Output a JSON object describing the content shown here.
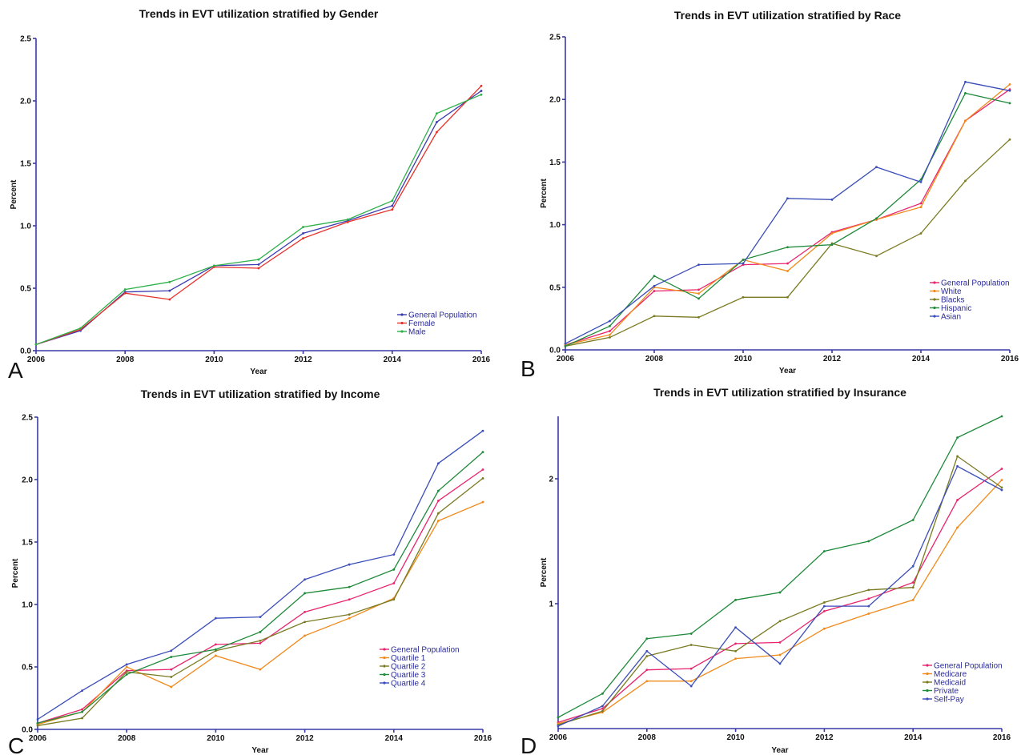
{
  "chart_data": [
    {
      "type": "line",
      "letter": "A",
      "title": "Trends in EVT utilization stratified by Gender",
      "xlabel": "Year",
      "ylabel": "Percent",
      "xlim": [
        2006,
        2016
      ],
      "ylim": [
        0,
        2.5
      ],
      "yticks": [
        "0.0",
        "0.5",
        "1.0",
        "1.5",
        "2.0",
        "2.5"
      ],
      "ytick_values": [
        0,
        0.5,
        1,
        1.5,
        2,
        2.5
      ],
      "xticks": [
        2006,
        2008,
        2010,
        2012,
        2014,
        2016
      ],
      "legend_position": "bottom-right",
      "x": [
        2006,
        2007,
        2008,
        2009,
        2010,
        2011,
        2012,
        2013,
        2014,
        2015,
        2016
      ],
      "series": [
        {
          "name": "General Population",
          "color": "#3b3bb0",
          "values": [
            0.05,
            0.16,
            0.47,
            0.48,
            0.68,
            0.69,
            0.94,
            1.04,
            1.16,
            1.83,
            2.08
          ]
        },
        {
          "name": "Female",
          "color": "#e8302a",
          "values": [
            0.05,
            0.17,
            0.46,
            0.41,
            0.67,
            0.66,
            0.9,
            1.03,
            1.13,
            1.75,
            2.12
          ]
        },
        {
          "name": "Male",
          "color": "#2eb04a",
          "values": [
            0.05,
            0.18,
            0.49,
            0.55,
            0.68,
            0.73,
            0.99,
            1.05,
            1.2,
            1.9,
            2.05
          ]
        }
      ]
    },
    {
      "type": "line",
      "letter": "B",
      "title": "Trends in EVT utilization stratified by Race",
      "xlabel": "Year",
      "ylabel": "Percent",
      "xlim": [
        2006,
        2016
      ],
      "ylim": [
        0,
        2.5
      ],
      "yticks": [
        "0.0",
        "0.5",
        "1.0",
        "1.5",
        "2.0",
        "2.5"
      ],
      "ytick_values": [
        0,
        0.5,
        1,
        1.5,
        2,
        2.5
      ],
      "xticks": [
        2006,
        2008,
        2010,
        2012,
        2014,
        2016
      ],
      "legend_position": "bottom-right",
      "x": [
        2006,
        2007,
        2008,
        2009,
        2010,
        2011,
        2012,
        2013,
        2014,
        2015,
        2016
      ],
      "series": [
        {
          "name": "General Population",
          "color": "#e8246e",
          "values": [
            0.04,
            0.15,
            0.47,
            0.48,
            0.68,
            0.69,
            0.94,
            1.04,
            1.17,
            1.83,
            2.08
          ]
        },
        {
          "name": "White",
          "color": "#f08a1c",
          "values": [
            0.04,
            0.12,
            0.5,
            0.45,
            0.72,
            0.63,
            0.93,
            1.04,
            1.14,
            1.83,
            2.12
          ]
        },
        {
          "name": "Blacks",
          "color": "#7a7a22",
          "values": [
            0.03,
            0.1,
            0.27,
            0.26,
            0.42,
            0.42,
            0.85,
            0.75,
            0.93,
            1.35,
            1.68
          ]
        },
        {
          "name": "Hispanic",
          "color": "#1e8a3a",
          "values": [
            0.03,
            0.19,
            0.59,
            0.41,
            0.72,
            0.82,
            0.84,
            1.05,
            1.36,
            2.05,
            1.97
          ]
        },
        {
          "name": "Asian",
          "color": "#3b4db8",
          "values": [
            0.05,
            0.23,
            0.51,
            0.68,
            0.69,
            1.21,
            1.2,
            1.46,
            1.34,
            2.14,
            2.07
          ]
        }
      ]
    },
    {
      "type": "line",
      "letter": "C",
      "title": "Trends in EVT utilization stratified by Income",
      "xlabel": "Year",
      "ylabel": "Percent",
      "xlim": [
        2006,
        2016
      ],
      "ylim": [
        0,
        2.5
      ],
      "yticks": [
        "0.0",
        "0.5",
        "1.0",
        "1.5",
        "2.0",
        "2.5"
      ],
      "ytick_values": [
        0,
        0.5,
        1,
        1.5,
        2,
        2.5
      ],
      "xticks": [
        2006,
        2008,
        2010,
        2012,
        2014,
        2016
      ],
      "legend_position": "bottom-right",
      "x": [
        2006,
        2007,
        2008,
        2009,
        2010,
        2011,
        2012,
        2013,
        2014,
        2015,
        2016
      ],
      "series": [
        {
          "name": "General Population",
          "color": "#e8246e",
          "values": [
            0.05,
            0.16,
            0.47,
            0.48,
            0.68,
            0.69,
            0.94,
            1.04,
            1.17,
            1.83,
            2.08
          ]
        },
        {
          "name": "Quartile 1",
          "color": "#f08a1c",
          "values": [
            0.04,
            0.14,
            0.5,
            0.34,
            0.59,
            0.48,
            0.75,
            0.89,
            1.05,
            1.67,
            1.82
          ]
        },
        {
          "name": "Quartile 2",
          "color": "#7a7a22",
          "values": [
            0.03,
            0.09,
            0.46,
            0.42,
            0.63,
            0.71,
            0.86,
            0.92,
            1.04,
            1.73,
            2.01
          ]
        },
        {
          "name": "Quartile 3",
          "color": "#1e8a3a",
          "values": [
            0.05,
            0.14,
            0.44,
            0.58,
            0.64,
            0.78,
            1.09,
            1.14,
            1.28,
            1.91,
            2.22
          ]
        },
        {
          "name": "Quartile 4",
          "color": "#3b4db8",
          "values": [
            0.08,
            0.31,
            0.52,
            0.63,
            0.89,
            0.9,
            1.2,
            1.32,
            1.4,
            2.13,
            2.39
          ]
        }
      ]
    },
    {
      "type": "line",
      "letter": "D",
      "title": "Trends in EVT utilization stratified by Insurance",
      "xlabel": "Year",
      "ylabel": "Percent",
      "xlim": [
        2006,
        2016
      ],
      "ylim": [
        0,
        2.5
      ],
      "yticks": [
        "1",
        "2"
      ],
      "ytick_values": [
        1,
        2
      ],
      "xticks": [
        2006,
        2008,
        2010,
        2012,
        2014,
        2016
      ],
      "legend_position": "bottom-right",
      "x": [
        2006,
        2007,
        2008,
        2009,
        2010,
        2011,
        2012,
        2013,
        2014,
        2015,
        2016
      ],
      "series": [
        {
          "name": "General Population",
          "color": "#e8246e",
          "values": [
            0.05,
            0.16,
            0.47,
            0.48,
            0.68,
            0.69,
            0.94,
            1.04,
            1.17,
            1.83,
            2.08
          ]
        },
        {
          "name": "Medicare",
          "color": "#f08a1c",
          "values": [
            0.04,
            0.13,
            0.38,
            0.38,
            0.56,
            0.59,
            0.8,
            0.92,
            1.03,
            1.61,
            1.99
          ]
        },
        {
          "name": "Medicaid",
          "color": "#7a7a22",
          "values": [
            0.03,
            0.14,
            0.58,
            0.67,
            0.62,
            0.86,
            1.01,
            1.11,
            1.13,
            2.18,
            1.93
          ]
        },
        {
          "name": "Private",
          "color": "#1e8a3a",
          "values": [
            0.09,
            0.28,
            0.72,
            0.76,
            1.03,
            1.09,
            1.42,
            1.5,
            1.67,
            2.33,
            2.5
          ]
        },
        {
          "name": "Self-Pay",
          "color": "#3b4db8",
          "values": [
            0.02,
            0.18,
            0.62,
            0.34,
            0.81,
            0.52,
            0.98,
            0.98,
            1.3,
            2.1,
            1.91
          ]
        }
      ]
    }
  ]
}
